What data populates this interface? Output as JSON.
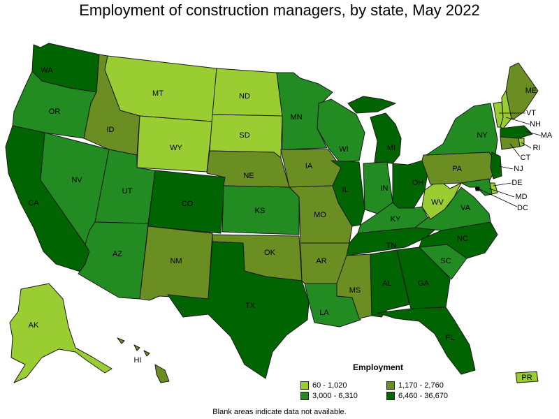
{
  "title": "Employment of construction managers, by state, May 2022",
  "footnote": "Blank areas indicate data not available.",
  "legend": {
    "title": "Employment",
    "items": [
      {
        "label": "60 - 1,020",
        "color": "#9acd32"
      },
      {
        "label": "1,170 - 2,760",
        "color": "#6b8e23"
      },
      {
        "label": "3,000 - 6,310",
        "color": "#228b22"
      },
      {
        "label": "6,460 - 36,670",
        "color": "#006400"
      }
    ]
  },
  "states": [
    {
      "abbr": "WA",
      "tier": 3
    },
    {
      "abbr": "OR",
      "tier": 2
    },
    {
      "abbr": "CA",
      "tier": 3
    },
    {
      "abbr": "NV",
      "tier": 2
    },
    {
      "abbr": "ID",
      "tier": 1
    },
    {
      "abbr": "MT",
      "tier": 0
    },
    {
      "abbr": "WY",
      "tier": 0
    },
    {
      "abbr": "UT",
      "tier": 2
    },
    {
      "abbr": "AZ",
      "tier": 2
    },
    {
      "abbr": "CO",
      "tier": 3
    },
    {
      "abbr": "NM",
      "tier": 1
    },
    {
      "abbr": "ND",
      "tier": 0
    },
    {
      "abbr": "SD",
      "tier": 0
    },
    {
      "abbr": "NE",
      "tier": 1
    },
    {
      "abbr": "KS",
      "tier": 2
    },
    {
      "abbr": "OK",
      "tier": 1
    },
    {
      "abbr": "TX",
      "tier": 3
    },
    {
      "abbr": "MN",
      "tier": 2
    },
    {
      "abbr": "IA",
      "tier": 1
    },
    {
      "abbr": "MO",
      "tier": 1
    },
    {
      "abbr": "AR",
      "tier": 1
    },
    {
      "abbr": "LA",
      "tier": 2
    },
    {
      "abbr": "WI",
      "tier": 2
    },
    {
      "abbr": "IL",
      "tier": 3
    },
    {
      "abbr": "MI",
      "tier": 3
    },
    {
      "abbr": "IN",
      "tier": 2
    },
    {
      "abbr": "OH",
      "tier": 3
    },
    {
      "abbr": "KY",
      "tier": 2
    },
    {
      "abbr": "TN",
      "tier": 3
    },
    {
      "abbr": "MS",
      "tier": 1
    },
    {
      "abbr": "AL",
      "tier": 3
    },
    {
      "abbr": "GA",
      "tier": 3
    },
    {
      "abbr": "FL",
      "tier": 3
    },
    {
      "abbr": "SC",
      "tier": 2
    },
    {
      "abbr": "NC",
      "tier": 3
    },
    {
      "abbr": "VA",
      "tier": 2
    },
    {
      "abbr": "WV",
      "tier": 0
    },
    {
      "abbr": "PA",
      "tier": 1
    },
    {
      "abbr": "NY",
      "tier": 2
    },
    {
      "abbr": "VT",
      "tier": 0
    },
    {
      "abbr": "NH",
      "tier": 0
    },
    {
      "abbr": "ME",
      "tier": 1
    },
    {
      "abbr": "MA",
      "tier": 3
    },
    {
      "abbr": "RI",
      "tier": 0
    },
    {
      "abbr": "CT",
      "tier": 1
    },
    {
      "abbr": "NJ",
      "tier": 3
    },
    {
      "abbr": "DE",
      "tier": 0
    },
    {
      "abbr": "MD",
      "tier": 2
    },
    {
      "abbr": "DC",
      "tier": 3
    },
    {
      "abbr": "AK",
      "tier": 0
    },
    {
      "abbr": "HI",
      "tier": 1
    },
    {
      "abbr": "PR",
      "tier": 0
    }
  ]
}
